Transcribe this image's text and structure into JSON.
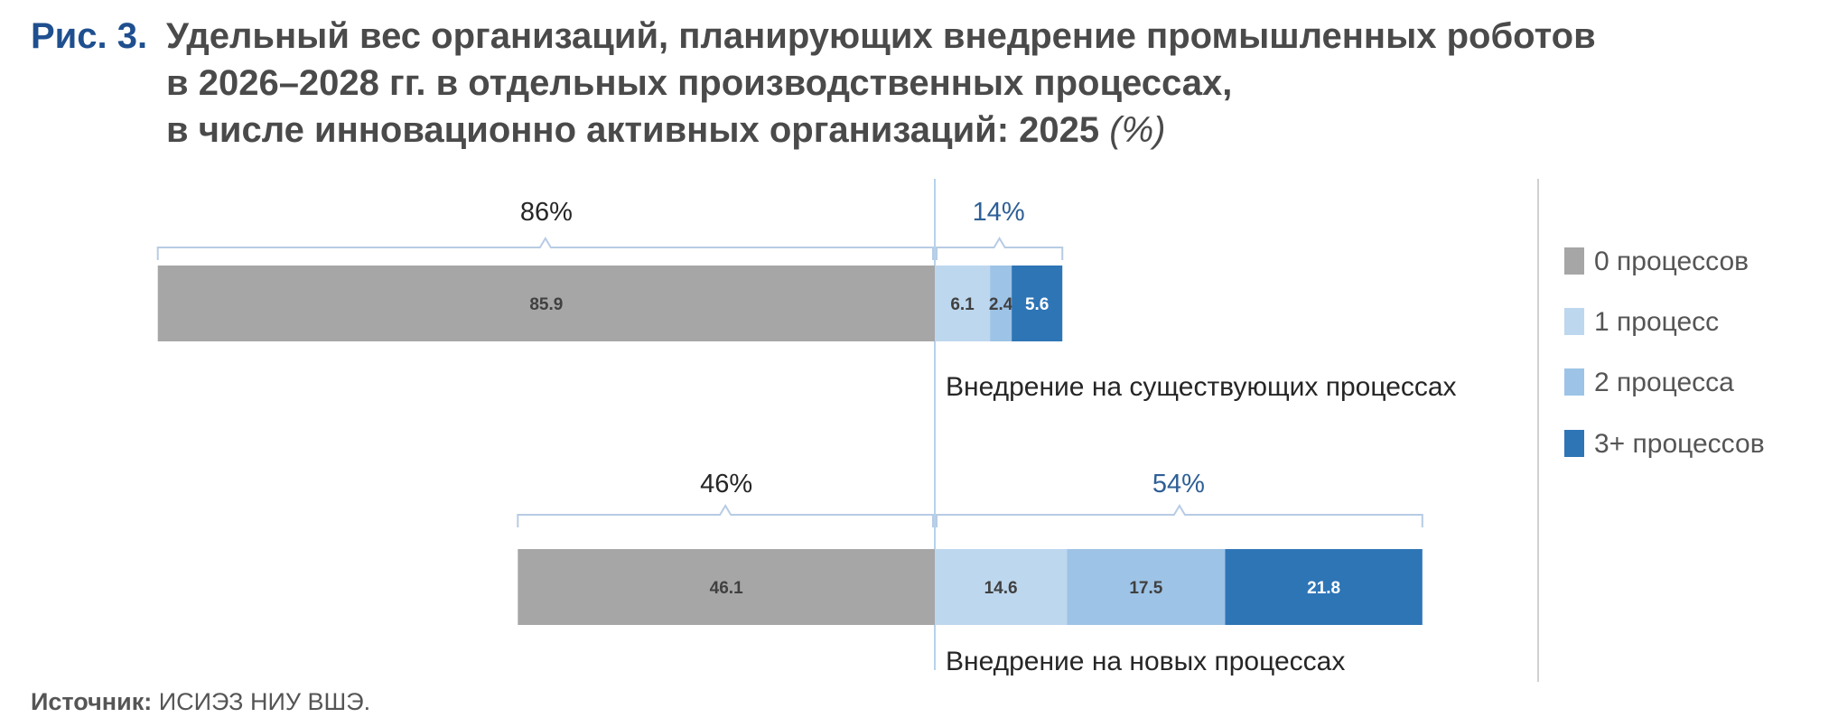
{
  "title": {
    "number": "Рис. 3.",
    "line1": "Удельный вес организаций, планирующих внедрение промышленных роботов",
    "line2": "в 2026–2028 гг. в отдельных производственных процессах,",
    "line3": "в числе инновационно активных организаций: 2025",
    "unit": "(%)"
  },
  "source": {
    "label": "Источник:",
    "text": "ИСИЭЗ НИУ ВШЭ."
  },
  "colors": {
    "zero": "#a6a6a6",
    "one": "#bdd7ee",
    "two": "#9dc3e6",
    "three": "#2e75b6",
    "bracket": "#b7cce4",
    "axis": "#9dc3e6"
  },
  "chart_data": {
    "type": "bar",
    "orientation": "horizontal",
    "stacked": true,
    "baseline": "diverging at 0 processes / 1+ processes boundary",
    "legend_position": "right",
    "series": [
      {
        "name": "0 процессов",
        "color": "#a6a6a6"
      },
      {
        "name": "1 процесс",
        "color": "#bdd7ee"
      },
      {
        "name": "2 процесса",
        "color": "#9dc3e6"
      },
      {
        "name": "3+ процессов",
        "color": "#2e75b6"
      }
    ],
    "bars": [
      {
        "label": "Внедрение на существующих процессах",
        "values": [
          85.9,
          6.1,
          2.4,
          5.6
        ],
        "value_labels": [
          "85.9",
          "6.1",
          "2.4",
          "5.6"
        ],
        "left_total": "86%",
        "right_total": "14%"
      },
      {
        "label": "Внедрение на новых процессах",
        "values": [
          46.1,
          14.6,
          17.5,
          21.8
        ],
        "value_labels": [
          "46.1",
          "14.6",
          "17.5",
          "21.8"
        ],
        "left_total": "46%",
        "right_total": "54%"
      }
    ]
  }
}
